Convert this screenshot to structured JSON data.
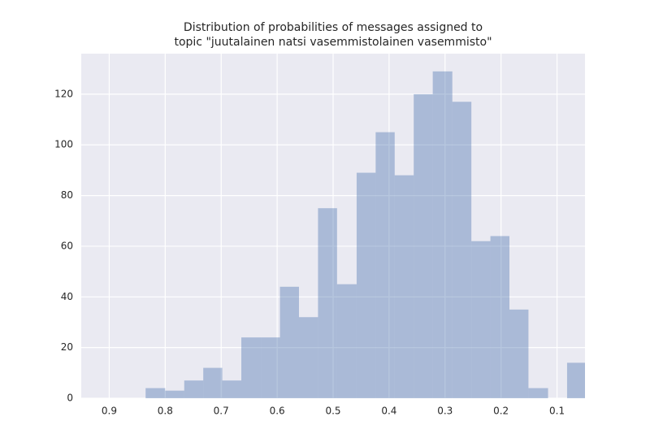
{
  "chart_data": {
    "type": "histogram",
    "title": [
      "Distribution of probabilities of messages assigned to",
      "topic \"juutalainen natsi vasemmistolainen vasemmisto\""
    ],
    "bins": [
      0.048,
      0.082,
      0.116,
      0.151,
      0.185,
      0.219,
      0.253,
      0.287,
      0.322,
      0.356,
      0.39,
      0.424,
      0.458,
      0.493,
      0.527,
      0.561,
      0.595,
      0.629,
      0.664,
      0.698,
      0.732,
      0.766,
      0.8,
      0.835
    ],
    "counts": [
      14,
      0,
      4,
      35,
      64,
      62,
      117,
      129,
      120,
      88,
      105,
      89,
      45,
      75,
      32,
      44,
      24,
      24,
      7,
      12,
      7,
      3,
      4
    ],
    "color": "#4c72b0",
    "alpha": 0.4,
    "xlim": [
      0.95,
      0.05
    ],
    "xticks": [
      0.9,
      0.8,
      0.7,
      0.6,
      0.5,
      0.4,
      0.3,
      0.2,
      0.1
    ],
    "ylim": [
      0,
      136
    ],
    "yticks": [
      0,
      20,
      40,
      60,
      80,
      100,
      120
    ],
    "grid": true
  }
}
